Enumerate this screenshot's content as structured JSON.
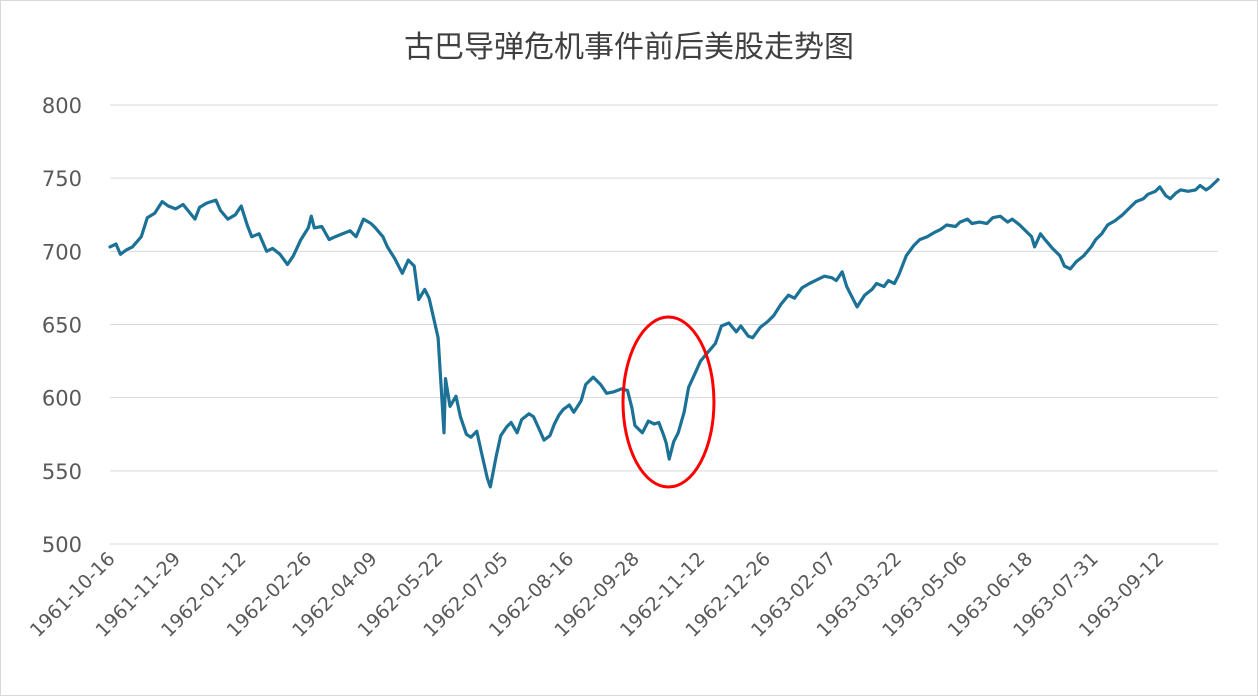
{
  "chart_data": {
    "type": "line",
    "title": "古巴导弹危机事件前后美股走势图",
    "xlabel": "",
    "ylabel": "",
    "ylim": [
      500,
      800
    ],
    "yticks": [
      500,
      550,
      600,
      650,
      700,
      750,
      800
    ],
    "x_tick_labels": [
      "1961-10-16",
      "1961-11-29",
      "1962-01-12",
      "1962-02-26",
      "1962-04-09",
      "1962-05-22",
      "1962-07-05",
      "1962-08-16",
      "1962-09-28",
      "1962-11-12",
      "1962-12-26",
      "1963-02-07",
      "1963-03-22",
      "1963-05-06",
      "1963-06-18",
      "1963-07-31",
      "1963-09-12"
    ],
    "grid": true,
    "legend": "none",
    "line_color": "#1b7196",
    "annotation": {
      "type": "circle",
      "color": "#ff0000",
      "x_range": [
        "1962-09-25",
        "1962-11-25"
      ],
      "y_center": 597
    },
    "series": [
      {
        "name": "",
        "points": [
          [
            "1961-10-16",
            703
          ],
          [
            "1961-10-20",
            705
          ],
          [
            "1961-10-23",
            698
          ],
          [
            "1961-10-27",
            701
          ],
          [
            "1961-10-31",
            703
          ],
          [
            "1961-11-06",
            710
          ],
          [
            "1961-11-10",
            723
          ],
          [
            "1961-11-15",
            726
          ],
          [
            "1961-11-20",
            734
          ],
          [
            "1961-11-24",
            731
          ],
          [
            "1961-11-29",
            729
          ],
          [
            "1961-12-04",
            732
          ],
          [
            "1961-12-08",
            727
          ],
          [
            "1961-12-12",
            722
          ],
          [
            "1961-12-15",
            730
          ],
          [
            "1961-12-20",
            733
          ],
          [
            "1961-12-26",
            735
          ],
          [
            "1961-12-29",
            728
          ],
          [
            "1962-01-03",
            722
          ],
          [
            "1962-01-08",
            725
          ],
          [
            "1962-01-12",
            731
          ],
          [
            "1962-01-16",
            718
          ],
          [
            "1962-01-19",
            710
          ],
          [
            "1962-01-24",
            712
          ],
          [
            "1962-01-29",
            700
          ],
          [
            "1962-02-02",
            702
          ],
          [
            "1962-02-07",
            698
          ],
          [
            "1962-02-12",
            691
          ],
          [
            "1962-02-16",
            697
          ],
          [
            "1962-02-21",
            708
          ],
          [
            "1962-02-26",
            716
          ],
          [
            "1962-02-28",
            724
          ],
          [
            "1962-03-02",
            716
          ],
          [
            "1962-03-07",
            717
          ],
          [
            "1962-03-12",
            708
          ],
          [
            "1962-03-16",
            710
          ],
          [
            "1962-03-21",
            712
          ],
          [
            "1962-03-26",
            714
          ],
          [
            "1962-03-30",
            710
          ],
          [
            "1962-04-04",
            722
          ],
          [
            "1962-04-09",
            719
          ],
          [
            "1962-04-12",
            716
          ],
          [
            "1962-04-17",
            710
          ],
          [
            "1962-04-20",
            703
          ],
          [
            "1962-04-25",
            695
          ],
          [
            "1962-04-30",
            685
          ],
          [
            "1962-05-04",
            694
          ],
          [
            "1962-05-08",
            690
          ],
          [
            "1962-05-11",
            667
          ],
          [
            "1962-05-15",
            674
          ],
          [
            "1962-05-18",
            668
          ],
          [
            "1962-05-22",
            650
          ],
          [
            "1962-05-24",
            641
          ],
          [
            "1962-05-28",
            576
          ],
          [
            "1962-05-29",
            613
          ],
          [
            "1962-06-01",
            594
          ],
          [
            "1962-06-05",
            601
          ],
          [
            "1962-06-08",
            587
          ],
          [
            "1962-06-12",
            575
          ],
          [
            "1962-06-15",
            573
          ],
          [
            "1962-06-19",
            577
          ],
          [
            "1962-06-22",
            563
          ],
          [
            "1962-06-26",
            545
          ],
          [
            "1962-06-28",
            539
          ],
          [
            "1962-07-02",
            560
          ],
          [
            "1962-07-05",
            574
          ],
          [
            "1962-07-09",
            580
          ],
          [
            "1962-07-12",
            583
          ],
          [
            "1962-07-16",
            576
          ],
          [
            "1962-07-19",
            585
          ],
          [
            "1962-07-24",
            589
          ],
          [
            "1962-07-27",
            587
          ],
          [
            "1962-07-31",
            578
          ],
          [
            "1962-08-03",
            571
          ],
          [
            "1962-08-07",
            574
          ],
          [
            "1962-08-10",
            582
          ],
          [
            "1962-08-13",
            588
          ],
          [
            "1962-08-16",
            592
          ],
          [
            "1962-08-20",
            595
          ],
          [
            "1962-08-23",
            590
          ],
          [
            "1962-08-28",
            598
          ],
          [
            "1962-08-31",
            609
          ],
          [
            "1962-09-05",
            614
          ],
          [
            "1962-09-10",
            609
          ],
          [
            "1962-09-14",
            603
          ],
          [
            "1962-09-19",
            604
          ],
          [
            "1962-09-24",
            606
          ],
          [
            "1962-09-28",
            605
          ],
          [
            "1962-10-01",
            593
          ],
          [
            "1962-10-03",
            581
          ],
          [
            "1962-10-08",
            576
          ],
          [
            "1962-10-12",
            584
          ],
          [
            "1962-10-16",
            582
          ],
          [
            "1962-10-19",
            583
          ],
          [
            "1962-10-22",
            575
          ],
          [
            "1962-10-24",
            569
          ],
          [
            "1962-10-26",
            558
          ],
          [
            "1962-10-29",
            570
          ],
          [
            "1962-11-01",
            576
          ],
          [
            "1962-11-05",
            590
          ],
          [
            "1962-11-08",
            607
          ],
          [
            "1962-11-12",
            616
          ],
          [
            "1962-11-16",
            625
          ],
          [
            "1962-11-20",
            630
          ],
          [
            "1962-11-26",
            637
          ],
          [
            "1962-11-30",
            649
          ],
          [
            "1962-12-05",
            651
          ],
          [
            "1962-12-10",
            645
          ],
          [
            "1962-12-13",
            649
          ],
          [
            "1962-12-18",
            642
          ],
          [
            "1962-12-21",
            641
          ],
          [
            "1962-12-26",
            648
          ],
          [
            "1962-12-31",
            652
          ],
          [
            "1963-01-04",
            656
          ],
          [
            "1963-01-09",
            664
          ],
          [
            "1963-01-14",
            670
          ],
          [
            "1963-01-18",
            668
          ],
          [
            "1963-01-23",
            675
          ],
          [
            "1963-01-28",
            678
          ],
          [
            "1963-02-01",
            680
          ],
          [
            "1963-02-07",
            683
          ],
          [
            "1963-02-12",
            682
          ],
          [
            "1963-02-15",
            680
          ],
          [
            "1963-02-19",
            686
          ],
          [
            "1963-02-22",
            676
          ],
          [
            "1963-02-26",
            668
          ],
          [
            "1963-03-01",
            662
          ],
          [
            "1963-03-06",
            670
          ],
          [
            "1963-03-11",
            674
          ],
          [
            "1963-03-14",
            678
          ],
          [
            "1963-03-19",
            676
          ],
          [
            "1963-03-22",
            680
          ],
          [
            "1963-03-26",
            678
          ],
          [
            "1963-03-29",
            684
          ],
          [
            "1963-04-03",
            697
          ],
          [
            "1963-04-08",
            704
          ],
          [
            "1963-04-12",
            708
          ],
          [
            "1963-04-17",
            710
          ],
          [
            "1963-04-22",
            713
          ],
          [
            "1963-04-26",
            715
          ],
          [
            "1963-04-30",
            718
          ],
          [
            "1963-05-06",
            717
          ],
          [
            "1963-05-09",
            720
          ],
          [
            "1963-05-14",
            722
          ],
          [
            "1963-05-17",
            719
          ],
          [
            "1963-05-22",
            720
          ],
          [
            "1963-05-27",
            719
          ],
          [
            "1963-05-31",
            723
          ],
          [
            "1963-06-05",
            724
          ],
          [
            "1963-06-10",
            720
          ],
          [
            "1963-06-13",
            722
          ],
          [
            "1963-06-18",
            718
          ],
          [
            "1963-06-21",
            715
          ],
          [
            "1963-06-26",
            710
          ],
          [
            "1963-06-28",
            703
          ],
          [
            "1963-07-02",
            712
          ],
          [
            "1963-07-05",
            708
          ],
          [
            "1963-07-10",
            702
          ],
          [
            "1963-07-15",
            697
          ],
          [
            "1963-07-18",
            690
          ],
          [
            "1963-07-22",
            688
          ],
          [
            "1963-07-26",
            693
          ],
          [
            "1963-07-31",
            697
          ],
          [
            "1963-08-05",
            703
          ],
          [
            "1963-08-08",
            708
          ],
          [
            "1963-08-12",
            712
          ],
          [
            "1963-08-16",
            718
          ],
          [
            "1963-08-21",
            721
          ],
          [
            "1963-08-26",
            725
          ],
          [
            "1963-08-30",
            729
          ],
          [
            "1963-09-04",
            734
          ],
          [
            "1963-09-09",
            736
          ],
          [
            "1963-09-12",
            739
          ],
          [
            "1963-09-17",
            741
          ],
          [
            "1963-09-20",
            744
          ],
          [
            "1963-09-24",
            738
          ],
          [
            "1963-09-27",
            736
          ],
          [
            "1963-10-01",
            740
          ],
          [
            "1963-10-04",
            742
          ],
          [
            "1963-10-09",
            741
          ],
          [
            "1963-10-14",
            742
          ],
          [
            "1963-10-17",
            745
          ],
          [
            "1963-10-21",
            742
          ],
          [
            "1963-10-24",
            744
          ],
          [
            "1963-10-29",
            749
          ]
        ]
      }
    ]
  }
}
